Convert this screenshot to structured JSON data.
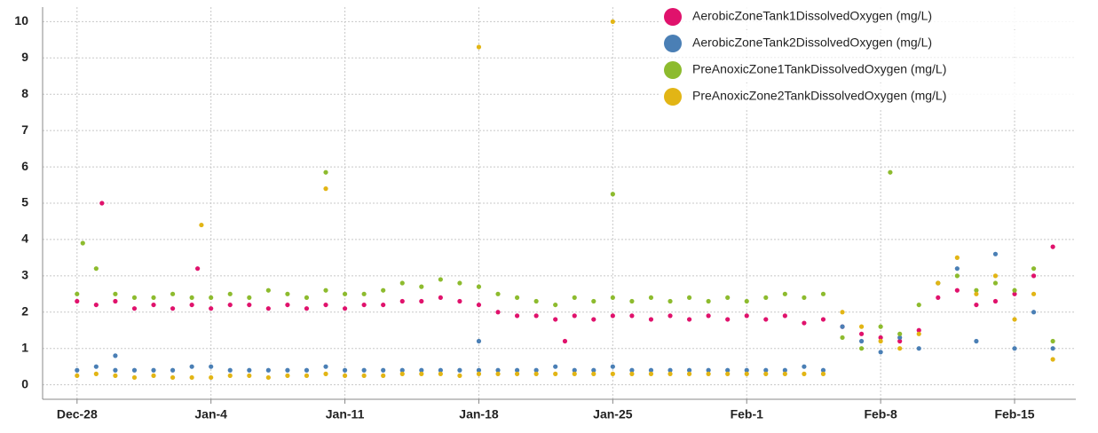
{
  "chart_data": {
    "type": "scatter",
    "xlim": [
      -1.8,
      52.2
    ],
    "ylim": [
      -0.4,
      10.4
    ],
    "xticks": [
      {
        "value": 0,
        "label": "Dec-28"
      },
      {
        "value": 7,
        "label": "Jan-4"
      },
      {
        "value": 14,
        "label": "Jan-11"
      },
      {
        "value": 21,
        "label": "Jan-18"
      },
      {
        "value": 28,
        "label": "Jan-25"
      },
      {
        "value": 35,
        "label": "Feb-1"
      },
      {
        "value": 42,
        "label": "Feb-8"
      },
      {
        "value": 49,
        "label": "Feb-15"
      }
    ],
    "yticks": [
      0,
      1,
      2,
      3,
      4,
      5,
      6,
      7,
      8,
      9,
      10
    ],
    "grid": true,
    "legend": "top-right",
    "series": [
      {
        "name": "AerobicZoneTank1DissolvedOxygen (mg/L)",
        "color": "#e0126c",
        "x": [
          0,
          1,
          2,
          3,
          4,
          5,
          6,
          7,
          8,
          9,
          10,
          11,
          12,
          13,
          14,
          15,
          16,
          17,
          18,
          19,
          20,
          21,
          22,
          23,
          24,
          25,
          26,
          27,
          28,
          29,
          30,
          31,
          32,
          33,
          34,
          35,
          36,
          37,
          38,
          39,
          40,
          41,
          42,
          43,
          44,
          45,
          46,
          47,
          48,
          49,
          50,
          51,
          1.3,
          6.3,
          25.5
        ],
        "values": [
          2.3,
          2.2,
          2.3,
          2.1,
          2.2,
          2.1,
          2.2,
          2.1,
          2.2,
          2.2,
          2.1,
          2.2,
          2.1,
          2.2,
          2.1,
          2.2,
          2.2,
          2.3,
          2.3,
          2.4,
          2.3,
          2.2,
          2.0,
          1.9,
          1.9,
          1.8,
          1.9,
          1.8,
          1.9,
          1.9,
          1.8,
          1.9,
          1.8,
          1.9,
          1.8,
          1.9,
          1.8,
          1.9,
          1.7,
          1.8,
          1.6,
          1.4,
          1.3,
          1.2,
          1.5,
          2.4,
          2.6,
          2.2,
          2.3,
          2.5,
          3.0,
          3.8,
          5.0,
          3.2,
          1.2
        ]
      },
      {
        "name": "AerobicZoneTank2DissolvedOxygen (mg/L)",
        "color": "#4a7fb5",
        "x": [
          0,
          1,
          2,
          3,
          4,
          5,
          6,
          7,
          8,
          9,
          10,
          11,
          12,
          13,
          14,
          15,
          16,
          17,
          18,
          19,
          20,
          21,
          22,
          23,
          24,
          25,
          26,
          27,
          28,
          29,
          30,
          31,
          32,
          33,
          34,
          35,
          36,
          37,
          38,
          39,
          40,
          41,
          42,
          43,
          44,
          45,
          46,
          47,
          48,
          49,
          50,
          51,
          21,
          2
        ],
        "values": [
          0.4,
          0.5,
          0.4,
          0.4,
          0.4,
          0.4,
          0.5,
          0.5,
          0.4,
          0.4,
          0.4,
          0.4,
          0.4,
          0.5,
          0.4,
          0.4,
          0.4,
          0.4,
          0.4,
          0.4,
          0.4,
          0.4,
          0.4,
          0.4,
          0.4,
          0.5,
          0.4,
          0.4,
          0.5,
          0.4,
          0.4,
          0.4,
          0.4,
          0.4,
          0.4,
          0.4,
          0.4,
          0.4,
          0.5,
          0.4,
          1.6,
          1.2,
          0.9,
          1.3,
          1.0,
          2.8,
          3.2,
          1.2,
          3.6,
          1.0,
          2.0,
          1.0,
          1.2,
          0.8
        ]
      },
      {
        "name": "PreAnoxicZone1TankDissolvedOxygen (mg/L)",
        "color": "#8dbb2e",
        "x": [
          0,
          1,
          2,
          3,
          4,
          5,
          6,
          7,
          8,
          9,
          10,
          11,
          12,
          13,
          14,
          15,
          16,
          17,
          18,
          19,
          20,
          21,
          22,
          23,
          24,
          25,
          26,
          27,
          28,
          29,
          30,
          31,
          32,
          33,
          34,
          35,
          36,
          37,
          38,
          39,
          40,
          41,
          42,
          43,
          44,
          45,
          46,
          47,
          48,
          49,
          50,
          51,
          13,
          42.5,
          28,
          0.3
        ],
        "values": [
          2.5,
          3.2,
          2.5,
          2.4,
          2.4,
          2.5,
          2.4,
          2.4,
          2.5,
          2.4,
          2.6,
          2.5,
          2.4,
          2.6,
          2.5,
          2.5,
          2.6,
          2.8,
          2.7,
          2.9,
          2.8,
          2.7,
          2.5,
          2.4,
          2.3,
          2.2,
          2.4,
          2.3,
          2.4,
          2.3,
          2.4,
          2.3,
          2.4,
          2.3,
          2.4,
          2.3,
          2.4,
          2.5,
          2.4,
          2.5,
          1.3,
          1.0,
          1.6,
          1.4,
          2.2,
          2.8,
          3.0,
          2.6,
          2.8,
          2.6,
          3.2,
          1.2,
          5.85,
          5.85,
          5.25,
          3.9
        ]
      },
      {
        "name": "PreAnoxicZone2TankDissolvedOxygen (mg/L)",
        "color": "#e2b515",
        "x": [
          0,
          1,
          2,
          3,
          4,
          5,
          6,
          7,
          8,
          9,
          10,
          11,
          12,
          13,
          14,
          15,
          16,
          17,
          18,
          19,
          20,
          21,
          22,
          23,
          24,
          25,
          26,
          27,
          28,
          29,
          30,
          31,
          32,
          33,
          34,
          35,
          36,
          37,
          38,
          39,
          40,
          41,
          42,
          43,
          44,
          45,
          46,
          47,
          48,
          49,
          50,
          51,
          6.5,
          13,
          21,
          28
        ],
        "values": [
          0.25,
          0.3,
          0.25,
          0.2,
          0.25,
          0.2,
          0.2,
          0.2,
          0.25,
          0.25,
          0.2,
          0.25,
          0.25,
          0.3,
          0.25,
          0.25,
          0.25,
          0.3,
          0.3,
          0.3,
          0.25,
          0.3,
          0.3,
          0.3,
          0.3,
          0.3,
          0.3,
          0.3,
          0.3,
          0.3,
          0.3,
          0.3,
          0.3,
          0.3,
          0.3,
          0.3,
          0.3,
          0.3,
          0.3,
          0.3,
          2.0,
          1.6,
          1.2,
          1.0,
          1.4,
          2.8,
          3.5,
          2.5,
          3.0,
          1.8,
          2.5,
          0.7,
          4.4,
          5.4,
          9.3,
          10.0
        ]
      }
    ]
  }
}
